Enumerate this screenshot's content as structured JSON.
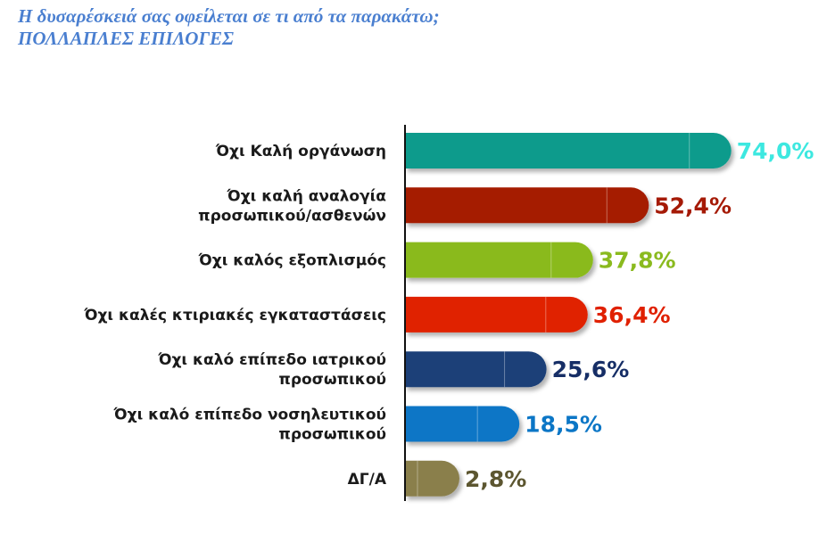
{
  "header": {
    "title_line1": "Η δυσαρέσκειά σας οφείλεται σε τι από τα παρακάτω;",
    "title_line2": "ΠΟΛΛΑΠΛΕΣ ΕΠΙΛΟΓΕΣ"
  },
  "chart_data": {
    "type": "bar",
    "orientation": "horizontal",
    "title": "Η δυσαρέσκειά σας οφείλεται σε τι από τα παρακάτω; ΠΟΛΛΑΠΛΕΣ ΕΠΙΛΟΓΕΣ",
    "categories": [
      [
        "Όχι Καλή οργάνωση"
      ],
      [
        "Όχι καλή αναλογία",
        "προσωπικού/ασθενών"
      ],
      [
        "Όχι καλός εξοπλισμός"
      ],
      [
        "Όχι καλές κτιριακές εγκαταστάσεις"
      ],
      [
        "Όχι καλό επίπεδο ιατρικού",
        "προσωπικού"
      ],
      [
        "Όχι καλό επίπεδο νοσηλευτικού",
        "προσωπικού"
      ],
      [
        "ΔΓ/Α"
      ]
    ],
    "values": [
      74.0,
      52.4,
      37.8,
      36.4,
      25.6,
      18.5,
      2.8
    ],
    "value_labels": [
      "74,0%",
      "52,4%",
      "37,8%",
      "36,4%",
      "25,6%",
      "18,5%",
      "2,8%"
    ],
    "bar_colors": [
      "#0e9b8c",
      "#a51a06",
      "#8aba1e",
      "#e02000",
      "#1a3f78",
      "#0b76c6",
      "#8a7f4c"
    ],
    "label_colors": [
      "#3de8e0",
      "#a51a06",
      "#8aba1e",
      "#e02000",
      "#162e66",
      "#0b76c6",
      "#5c5630"
    ],
    "grid": false,
    "legend": "none"
  }
}
